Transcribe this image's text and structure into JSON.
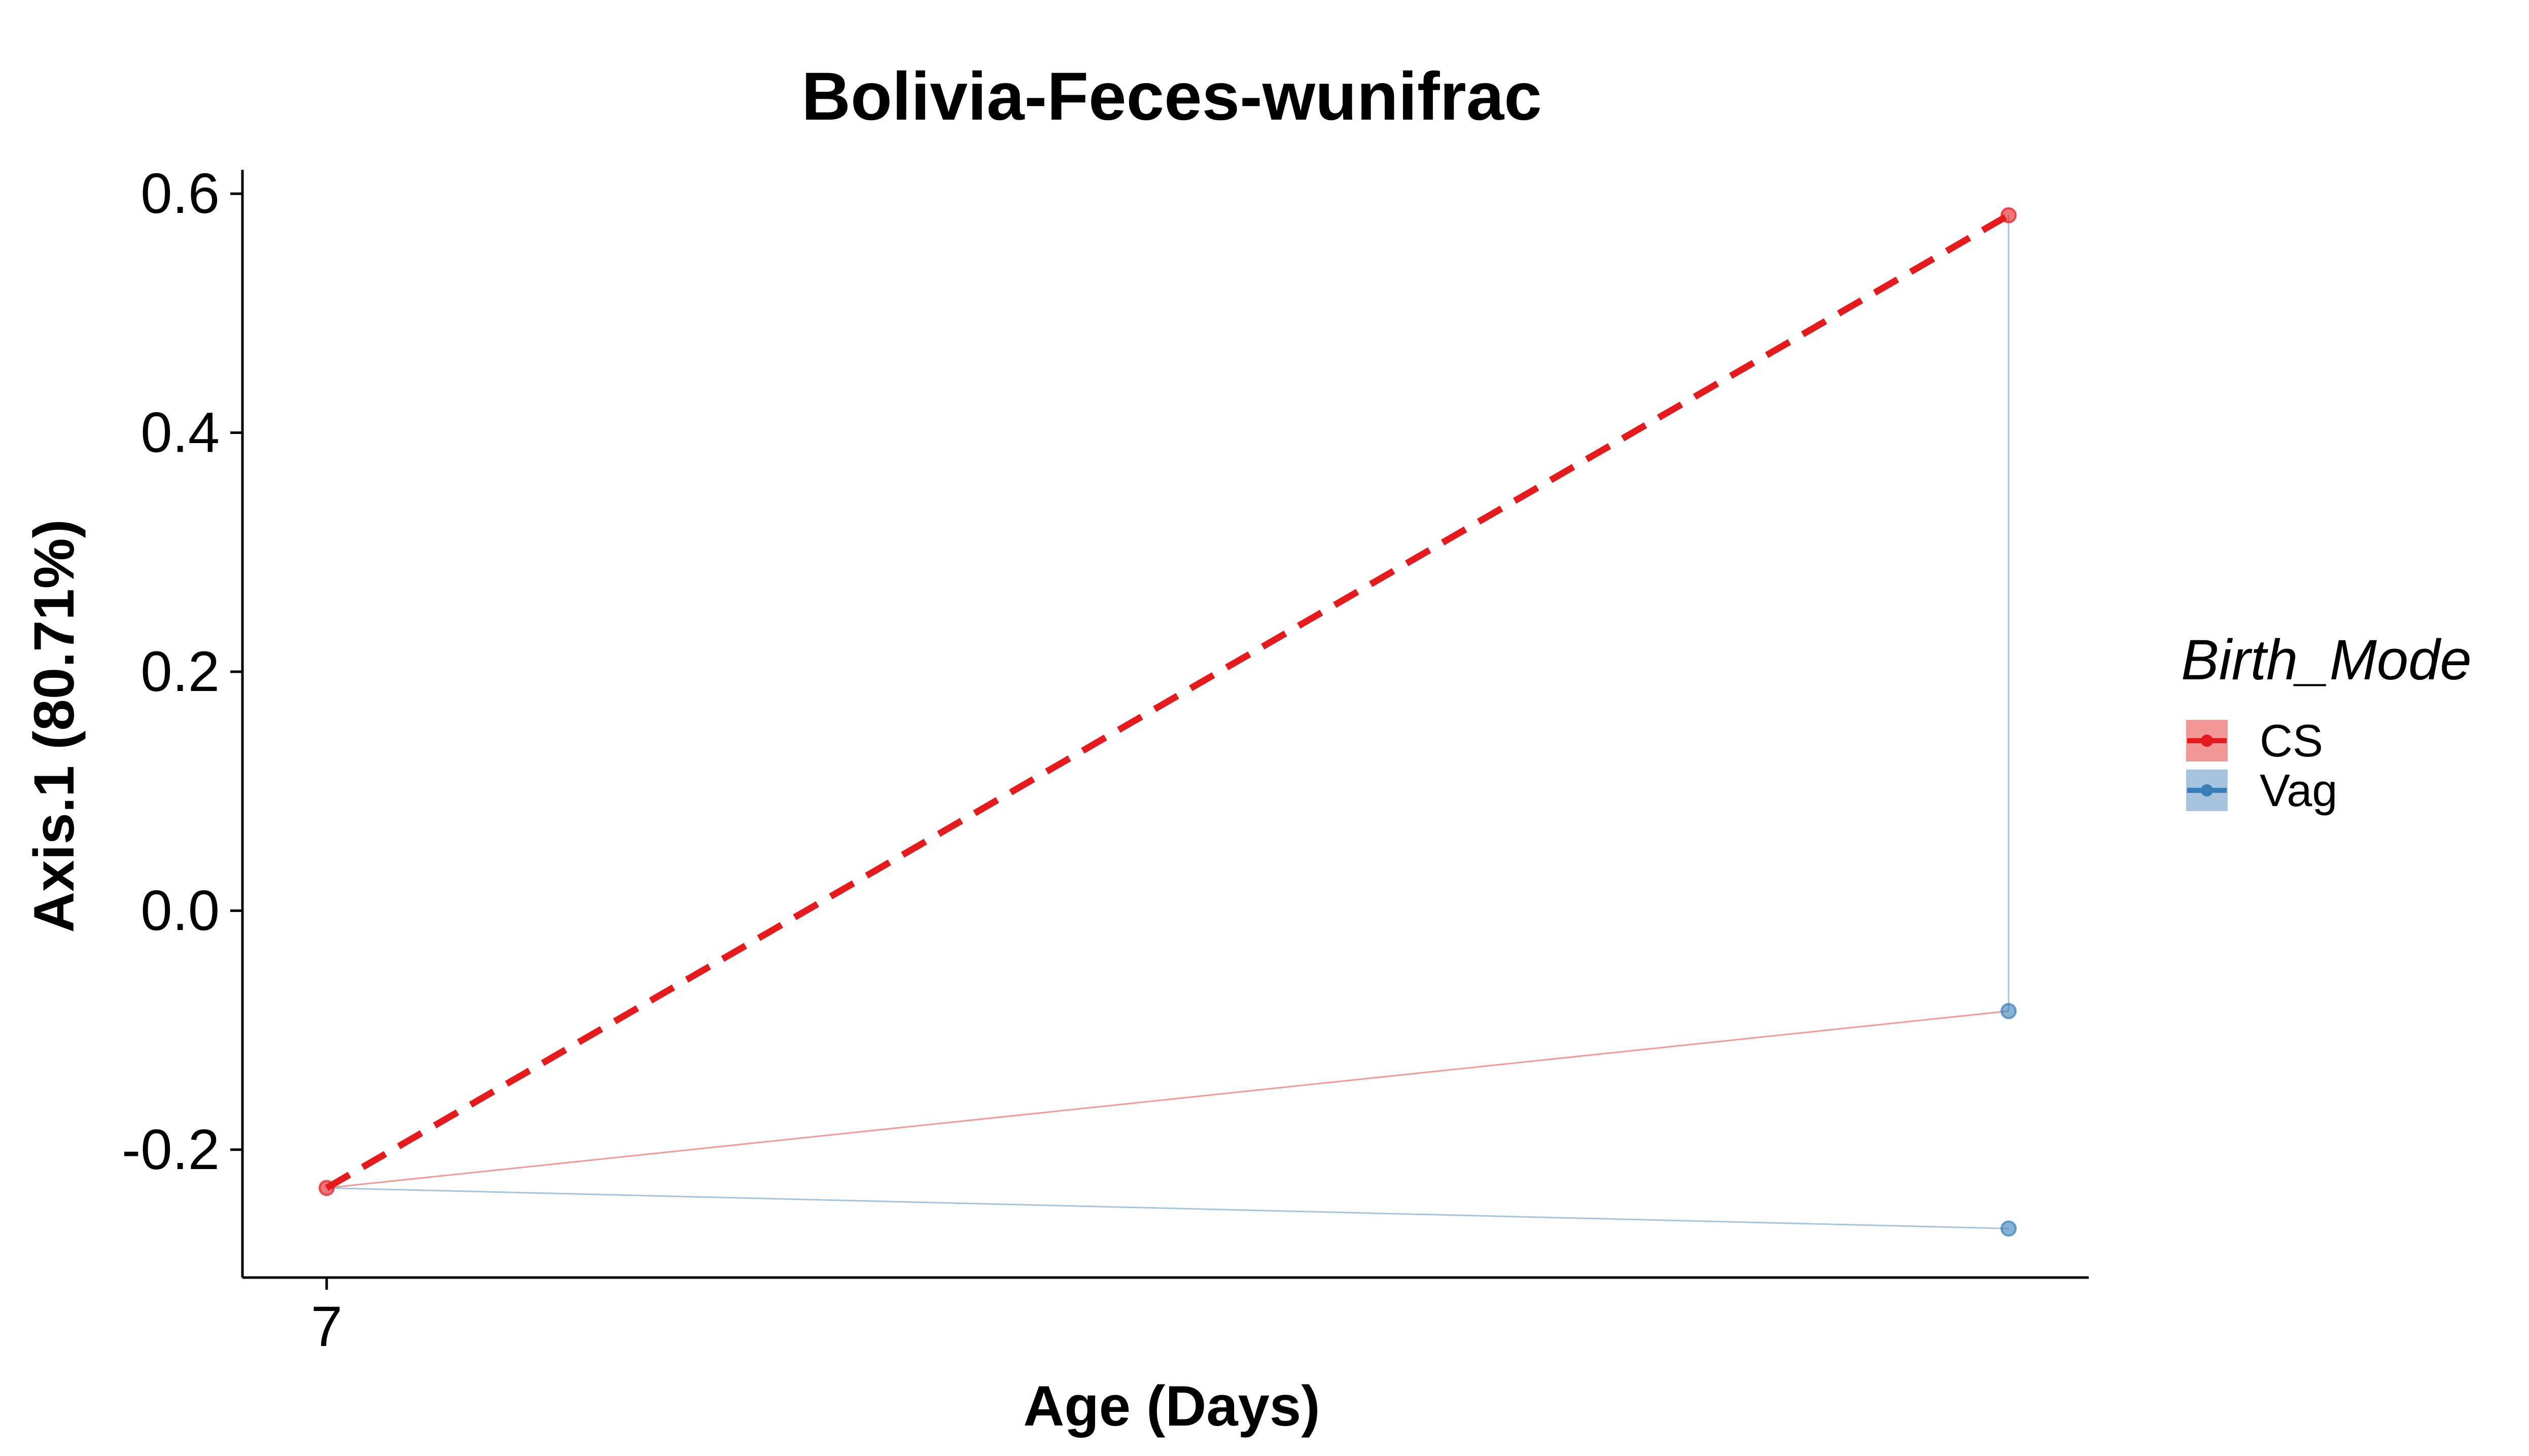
{
  "chart_data": {
    "type": "line",
    "title": "Bolivia-Feces-wunifrac",
    "xlabel": "Age (Days)",
    "ylabel": "Axis.1 (80.71%)",
    "x_ticks": [
      "7"
    ],
    "y_ticks": [
      "-0.2",
      "0.0",
      "0.2",
      "0.4",
      "0.6"
    ],
    "y_tick_values": [
      -0.2,
      0.0,
      0.2,
      0.4,
      0.6
    ],
    "ylim": [
      -0.307,
      0.62
    ],
    "x_positions": [
      "7",
      ""
    ],
    "legend": {
      "title": "Birth_Mode",
      "placement": "right",
      "entries": [
        {
          "label": "CS",
          "color": "#e41a1c"
        },
        {
          "label": "Vag",
          "color": "#377eb8"
        }
      ]
    },
    "points": [
      {
        "group": "CS",
        "x": 0,
        "y": -0.232
      },
      {
        "group": "CS",
        "x": 1,
        "y": 0.582
      },
      {
        "group": "Vag",
        "x": 1,
        "y": -0.084
      },
      {
        "group": "Vag",
        "x": 1,
        "y": -0.266
      }
    ],
    "subject_lines": [
      {
        "group": "CS",
        "from": [
          0,
          -0.232
        ],
        "to": [
          1,
          -0.084
        ]
      },
      {
        "group": "Vag",
        "from": [
          0,
          -0.232
        ],
        "to": [
          1,
          -0.266
        ]
      },
      {
        "group": "Vag",
        "from": [
          1,
          0.582
        ],
        "to": [
          1,
          -0.084
        ]
      }
    ],
    "trend_lines": [
      {
        "group": "CS",
        "style": "dashed",
        "from": [
          0,
          -0.232
        ],
        "to": [
          1,
          0.582
        ]
      }
    ],
    "grid": false
  }
}
